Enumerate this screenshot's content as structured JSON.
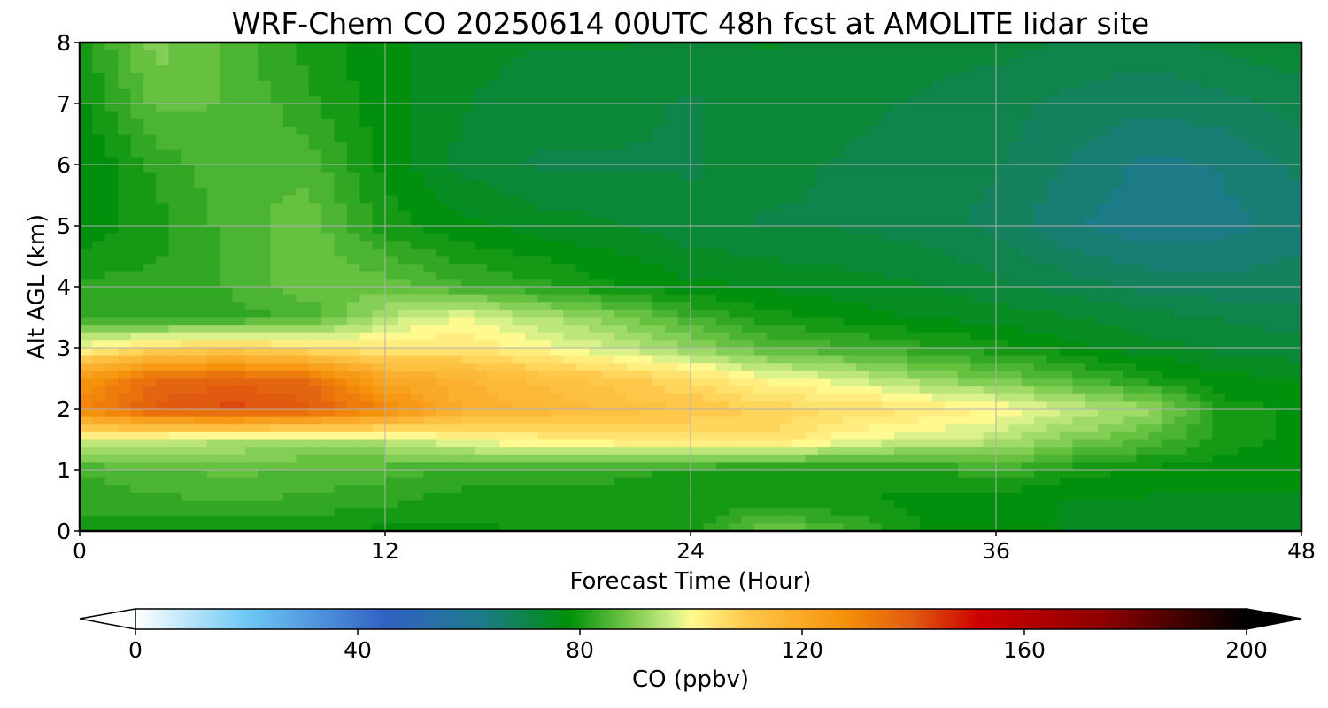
{
  "chart_data": {
    "type": "heatmap",
    "title": "WRF-Chem CO  20250614 00UTC 48h fcst at AMOLITE lidar site",
    "xlabel": "Forecast Time (Hour)",
    "ylabel": "Alt AGL (km)",
    "xlim": [
      0,
      48
    ],
    "ylim": [
      0,
      8
    ],
    "xticks": [
      "0",
      "12",
      "24",
      "36",
      "48"
    ],
    "yticks": [
      "0",
      "1",
      "2",
      "3",
      "4",
      "5",
      "6",
      "7",
      "8"
    ],
    "grid": true,
    "colorbar": {
      "label": "CO  (ppbv)",
      "range": [
        0,
        200
      ],
      "ticks": [
        "0",
        "40",
        "80",
        "120",
        "160",
        "200"
      ],
      "extend": "both",
      "stops": [
        {
          "v": 0,
          "c": "#ffffff"
        },
        {
          "v": 20,
          "c": "#6ec8f5"
        },
        {
          "v": 45,
          "c": "#3262c4"
        },
        {
          "v": 62,
          "c": "#1e7a8c"
        },
        {
          "v": 78,
          "c": "#00900a"
        },
        {
          "v": 88,
          "c": "#6cc444"
        },
        {
          "v": 97,
          "c": "#d4f08a"
        },
        {
          "v": 100,
          "c": "#fffa90"
        },
        {
          "v": 110,
          "c": "#ffc84a"
        },
        {
          "v": 128,
          "c": "#f5900a"
        },
        {
          "v": 140,
          "c": "#e05a10"
        },
        {
          "v": 152,
          "c": "#cc0000"
        },
        {
          "v": 175,
          "c": "#8a0000"
        },
        {
          "v": 200,
          "c": "#000000"
        }
      ]
    },
    "hours": [
      0,
      3,
      6,
      9,
      12,
      15,
      18,
      21,
      24,
      27,
      30,
      33,
      36,
      39,
      42,
      45,
      48
    ],
    "altitudes_km": [
      0,
      0.5,
      1,
      1.5,
      2,
      2.5,
      3,
      3.5,
      4,
      5,
      6,
      7,
      8
    ],
    "values": [
      [
        80,
        80,
        79,
        79,
        78,
        78,
        79,
        81,
        79,
        90,
        84,
        79,
        77,
        76,
        75,
        75,
        75
      ],
      [
        82,
        83,
        84,
        83,
        82,
        80,
        80,
        80,
        79,
        79,
        79,
        78,
        77,
        76,
        76,
        76,
        76
      ],
      [
        84,
        86,
        87,
        86,
        85,
        83,
        82,
        82,
        81,
        80,
        80,
        80,
        84,
        80,
        78,
        77,
        77
      ],
      [
        98,
        96,
        94,
        93,
        95,
        100,
        102,
        104,
        105,
        106,
        100,
        97,
        95,
        90,
        86,
        80,
        78
      ],
      [
        130,
        140,
        142,
        140,
        130,
        118,
        116,
        113,
        111,
        108,
        106,
        104,
        101,
        96,
        92,
        80,
        78
      ],
      [
        125,
        136,
        138,
        136,
        120,
        117,
        113,
        110,
        106,
        100,
        97,
        92,
        88,
        85,
        80,
        77,
        76
      ],
      [
        100,
        106,
        108,
        105,
        103,
        104,
        100,
        96,
        91,
        86,
        84,
        82,
        80,
        77,
        75,
        73,
        72
      ],
      [
        84,
        82,
        83,
        84,
        94,
        99,
        94,
        90,
        84,
        80,
        78,
        76,
        75,
        74,
        72,
        71,
        70
      ],
      [
        82,
        82,
        84,
        88,
        88,
        84,
        82,
        79,
        77,
        76,
        75,
        74,
        72,
        70,
        68,
        67,
        68
      ],
      [
        77,
        80,
        85,
        88,
        80,
        77,
        75,
        74,
        72,
        71,
        71,
        70,
        68,
        64,
        62,
        63,
        65
      ],
      [
        76,
        82,
        86,
        85,
        78,
        73,
        71,
        71,
        71,
        72,
        71,
        70,
        69,
        66,
        63,
        64,
        67
      ],
      [
        78,
        87,
        86,
        82,
        77,
        74,
        72,
        72,
        71,
        72,
        72,
        71,
        70,
        68,
        67,
        68,
        70
      ],
      [
        80,
        90,
        85,
        80,
        77,
        75,
        74,
        74,
        73,
        74,
        73,
        72,
        72,
        71,
        70,
        72,
        73
      ]
    ]
  }
}
